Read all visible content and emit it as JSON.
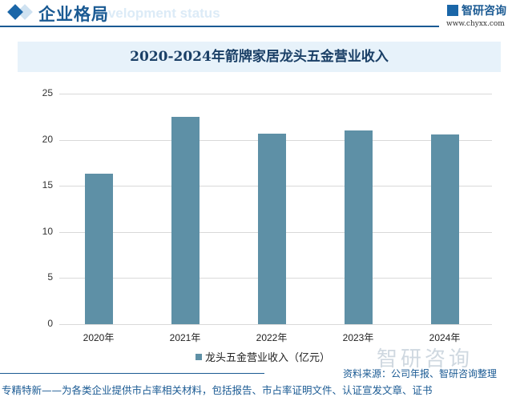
{
  "header": {
    "section_title": "企业格局",
    "section_subtitle": "development status",
    "brand_name": "智研咨询",
    "brand_url": "www.chyxx.com"
  },
  "chart_data": {
    "type": "bar",
    "title": "2020-2024年箭牌家居龙头五金营业收入",
    "categories": [
      "2020年",
      "2021年",
      "2022年",
      "2023年",
      "2024年"
    ],
    "series": [
      {
        "name": "龙头五金营业收入（亿元）",
        "values": [
          16.3,
          22.5,
          20.7,
          21.0,
          20.6
        ],
        "color": "#5e90a6"
      }
    ],
    "xlabel": "",
    "ylabel": "",
    "ylim": [
      0,
      25
    ],
    "yticks": [
      "0",
      "5",
      "10",
      "15",
      "20",
      "25"
    ],
    "grid": true,
    "legend_position": "bottom"
  },
  "watermark": "智研咨询",
  "source": "资料来源：公司年报、智研咨询整理",
  "footer": "专精特新——为各类企业提供市占率相关材料，包括报告、市占率证明文件、认证宣发文章、证书"
}
